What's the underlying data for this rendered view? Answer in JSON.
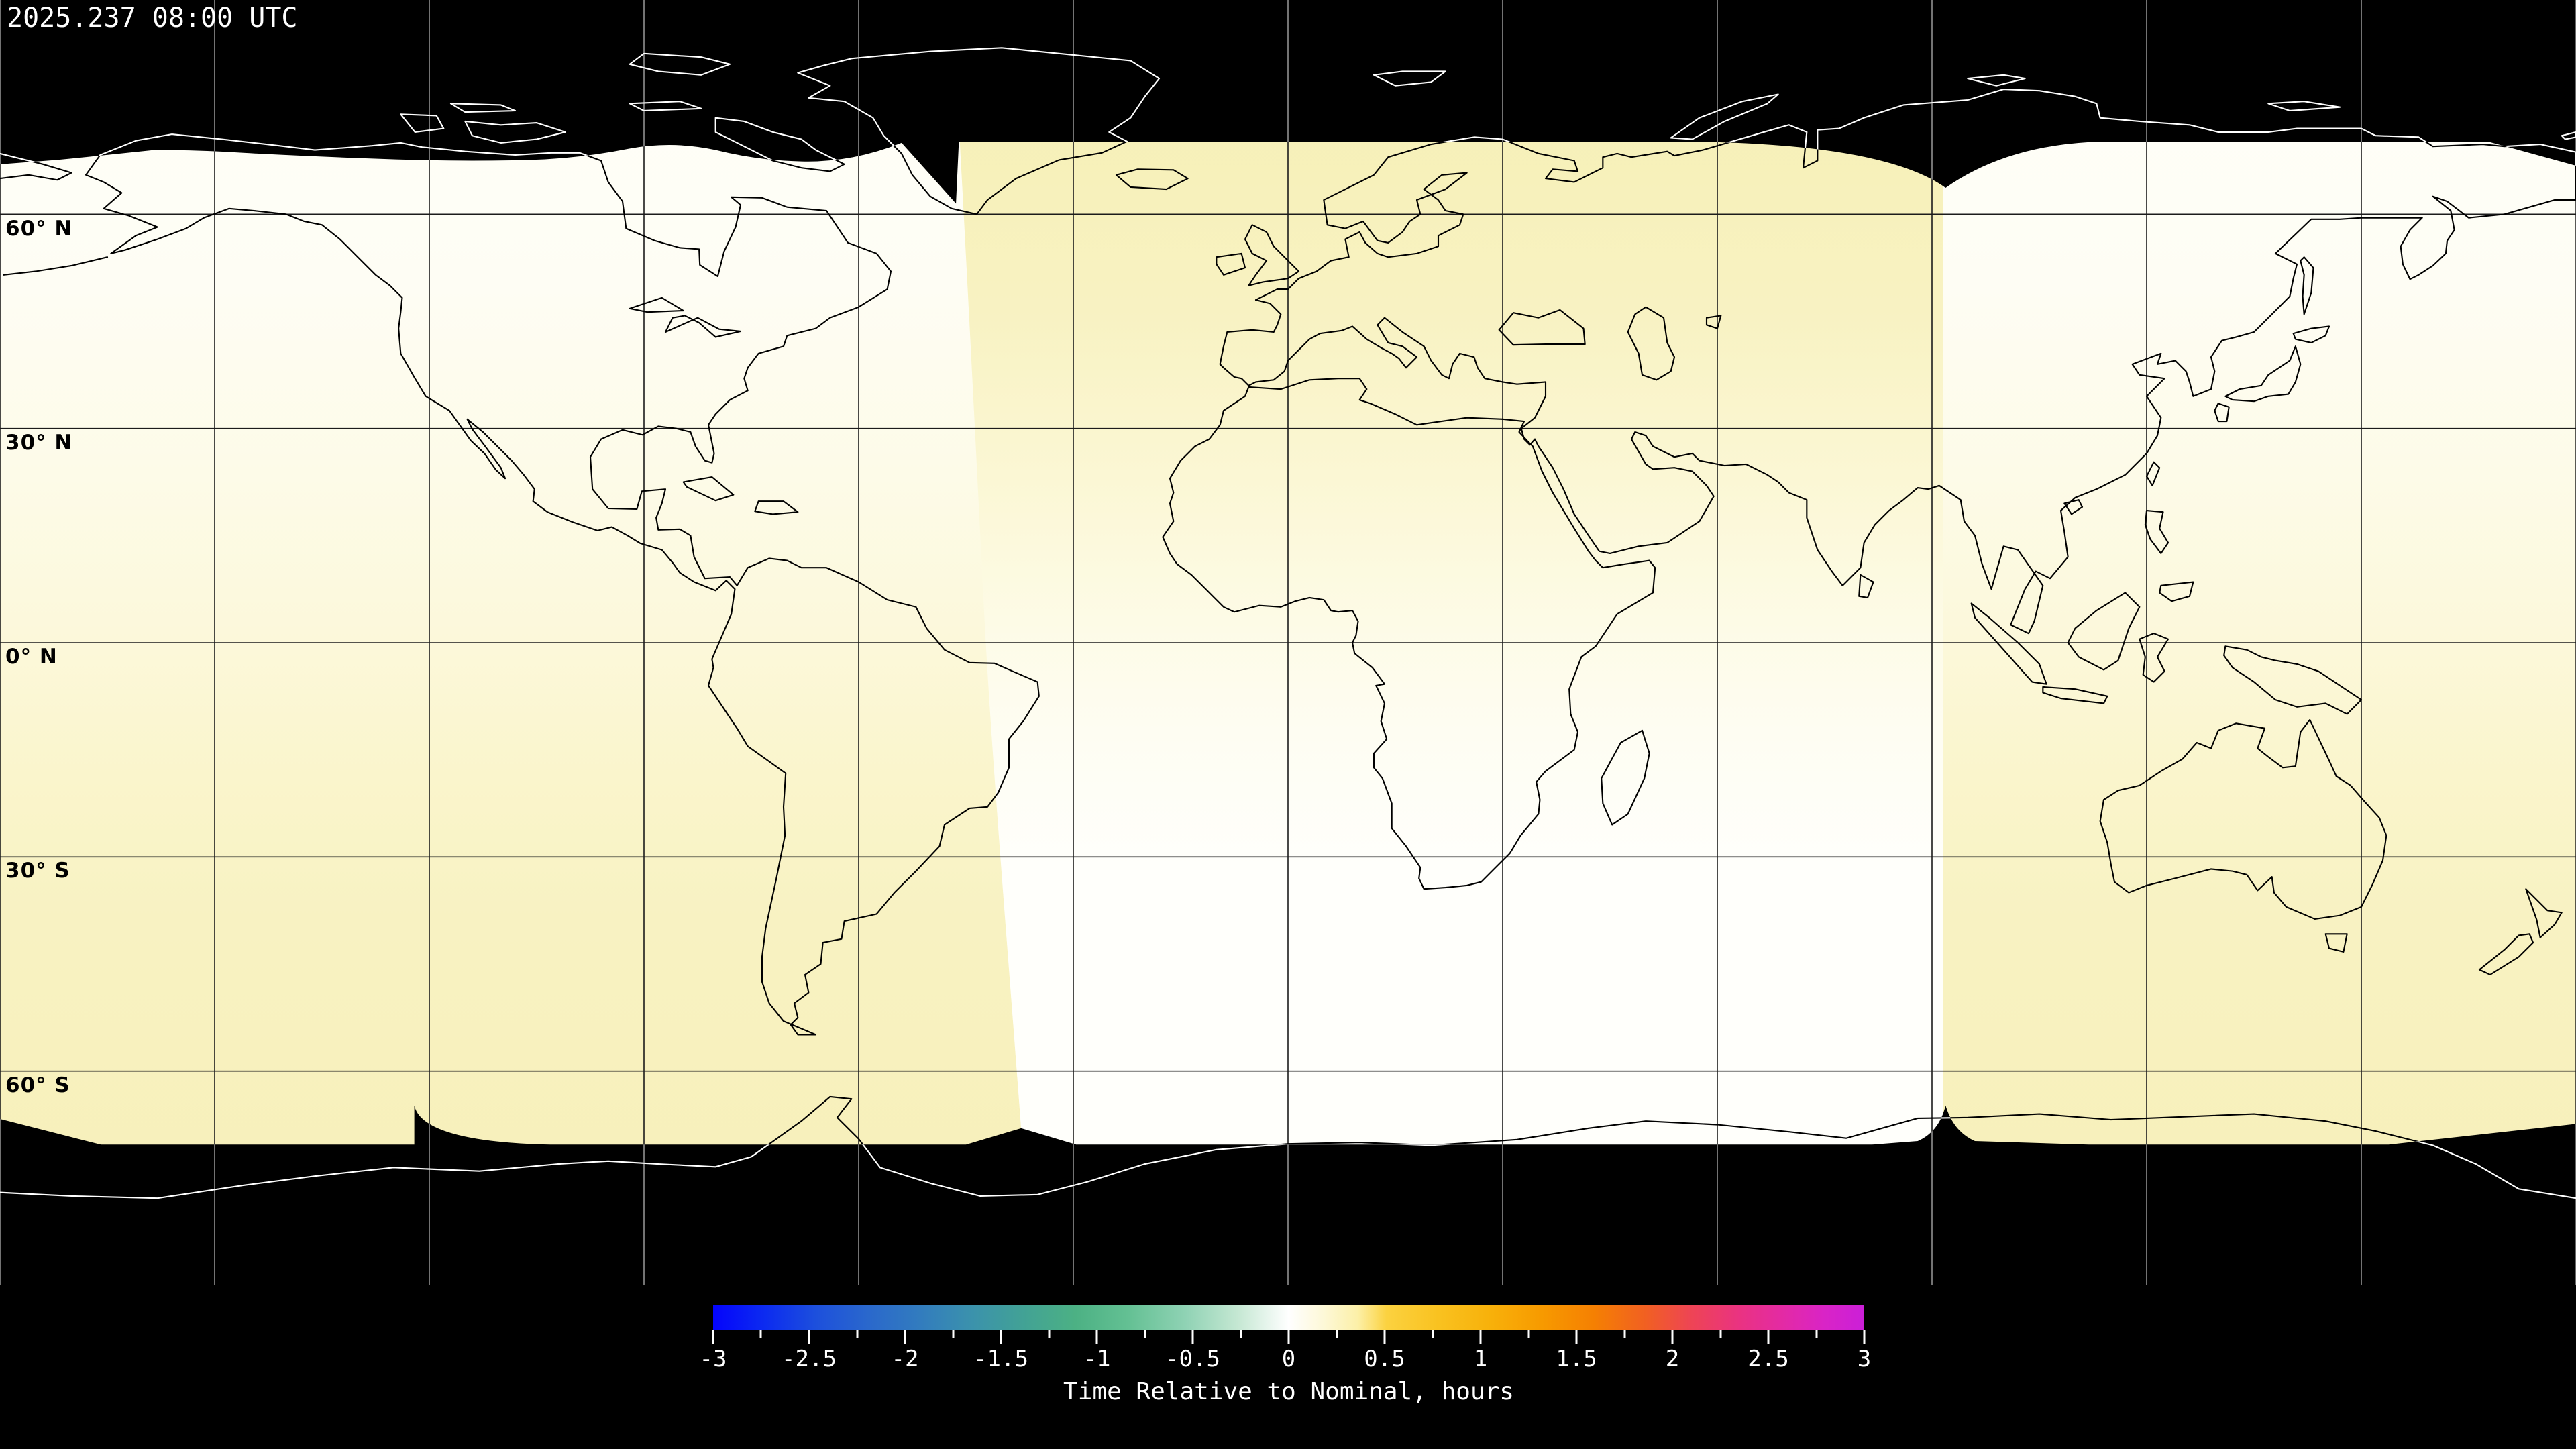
{
  "header": {
    "timestamp": "2025.237 08:00 UTC"
  },
  "map": {
    "latitude_labels": [
      "60° N",
      "30° N",
      "0° N",
      "30° S",
      "60° S"
    ],
    "grid_spacing_degrees": 30
  },
  "colorbar": {
    "label": "Time Relative to Nominal, hours",
    "range": [
      -3,
      3
    ],
    "minor_step": 0.25,
    "major_step": 0.5,
    "tick_labels": [
      "-3",
      "-2.5",
      "-2",
      "-1.5",
      "-1",
      "-0.5",
      "0",
      "0.5",
      "1",
      "1.5",
      "2",
      "2.5",
      "3"
    ],
    "gradient": [
      {
        "at": 0.0,
        "color": "#0404fc"
      },
      {
        "at": 0.045,
        "color": "#0c2bf0"
      },
      {
        "at": 0.09,
        "color": "#1d50dc"
      },
      {
        "at": 0.135,
        "color": "#2a68cc"
      },
      {
        "at": 0.18,
        "color": "#327cbe"
      },
      {
        "at": 0.225,
        "color": "#3b92ac"
      },
      {
        "at": 0.27,
        "color": "#42a295"
      },
      {
        "at": 0.315,
        "color": "#4cb184"
      },
      {
        "at": 0.36,
        "color": "#63c093"
      },
      {
        "at": 0.41,
        "color": "#8fd2b4"
      },
      {
        "at": 0.455,
        "color": "#c4e7d2"
      },
      {
        "at": 0.5,
        "color": "#ffffff"
      },
      {
        "at": 0.53,
        "color": "#fdf8d8"
      },
      {
        "at": 0.56,
        "color": "#fcf0a8"
      },
      {
        "at": 0.585,
        "color": "#fbd240"
      },
      {
        "at": 0.63,
        "color": "#f9c220"
      },
      {
        "at": 0.675,
        "color": "#f8b10a"
      },
      {
        "at": 0.72,
        "color": "#f79a00"
      },
      {
        "at": 0.765,
        "color": "#f58002"
      },
      {
        "at": 0.81,
        "color": "#f16022"
      },
      {
        "at": 0.85,
        "color": "#ee4455"
      },
      {
        "at": 0.89,
        "color": "#ea3380"
      },
      {
        "at": 0.93,
        "color": "#e32aa5"
      },
      {
        "at": 0.965,
        "color": "#d924c6"
      },
      {
        "at": 1.0,
        "color": "#cb1fd8"
      }
    ]
  },
  "theme": {
    "nodata": "#000000",
    "text": "#ffffff",
    "coast-light": "#000000",
    "coast-dark": "#ffffff",
    "grid-light": "#1c1c1c",
    "grid-dark": "#909090",
    "band-cream": "#fdfae2",
    "band-yellow": "#f7f1bc",
    "band-white": "#fffffa"
  }
}
